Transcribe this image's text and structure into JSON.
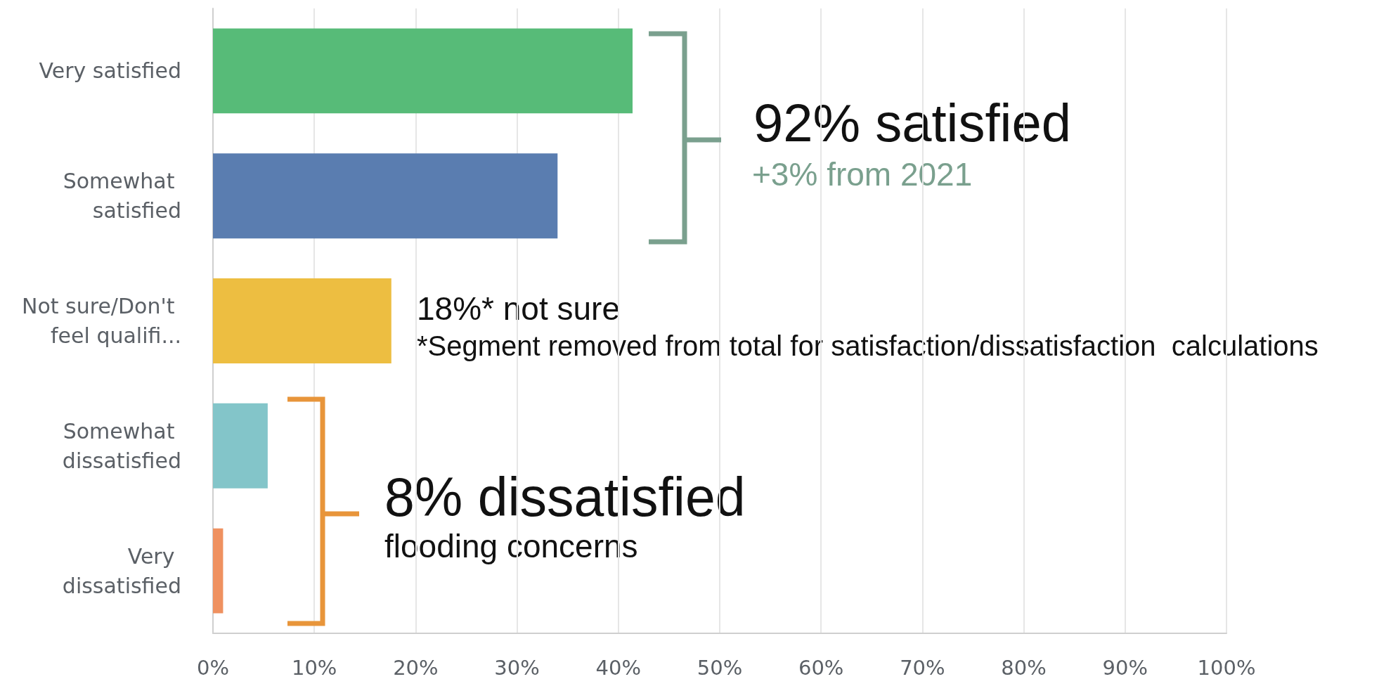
{
  "chart_data": {
    "type": "bar",
    "orientation": "horizontal",
    "categories": [
      "Very satisfied",
      "Somewhat satisfied",
      "Not sure/Don't feel qualifi...",
      "Somewhat dissatisfied",
      "Very dissatisfied"
    ],
    "values": [
      41.4,
      34,
      17.6,
      5.4,
      1
    ],
    "colors": [
      "#57bb78",
      "#5a7db0",
      "#edbe41",
      "#83c5c9",
      "#ef9160"
    ],
    "xlim": [
      0,
      100
    ],
    "xticks": [
      {
        "value": 0,
        "label": "0%"
      },
      {
        "value": 10,
        "label": "10%"
      },
      {
        "value": 20,
        "label": "20%"
      },
      {
        "value": 30,
        "label": "30%"
      },
      {
        "value": 40,
        "label": "40%"
      },
      {
        "value": 50,
        "label": "50%"
      },
      {
        "value": 60,
        "label": "60%"
      },
      {
        "value": 70,
        "label": "70%"
      },
      {
        "value": 80,
        "label": "80%"
      },
      {
        "value": 90,
        "label": "90%"
      },
      {
        "value": 100,
        "label": "100%"
      }
    ],
    "grid": "x",
    "annotations": [
      "92% satisfied",
      "+3% from 2021",
      "18%* not sure",
      "*Segment removed from total for satisfaction/dissatisfaction  calculations",
      "8% dissatisfied",
      "flooding concerns"
    ]
  }
}
